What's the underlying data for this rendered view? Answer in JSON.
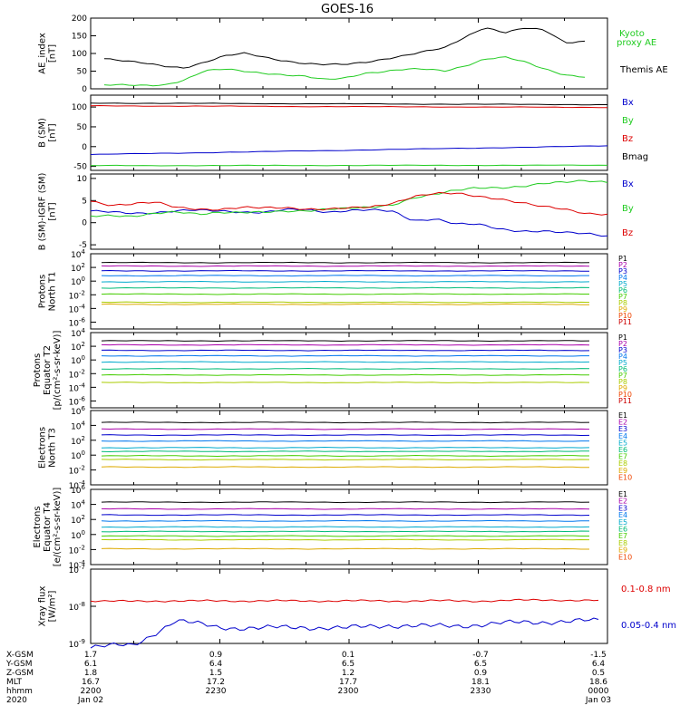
{
  "title": "GOES-16",
  "colors": {
    "black": "#000000",
    "blue": "#0000cc",
    "green": "#22cc22",
    "red": "#dd0000",
    "darkred": "#bb0000",
    "orange": "#ee8800",
    "yellow": "#dddd00",
    "channels": [
      "#000000",
      "#aa00aa",
      "#0000cc",
      "#0077ee",
      "#00aacc",
      "#00bb77",
      "#44cc00",
      "#aacc00",
      "#ddaa00",
      "#ee4400",
      "#cc0000"
    ]
  },
  "x_axis": {
    "time_range": [
      "2200",
      "0000"
    ],
    "tick_times": [
      "2200",
      "2230",
      "2300",
      "2330",
      "0000"
    ],
    "rows": [
      {
        "label": "X-GSM",
        "values": [
          "1.7",
          "0.9",
          "0.1",
          "-0.7",
          "-1.5"
        ]
      },
      {
        "label": "Y-GSM",
        "values": [
          "6.1",
          "6.4",
          "6.5",
          "6.5",
          "6.4"
        ]
      },
      {
        "label": "Z-GSM",
        "values": [
          "1.8",
          "1.5",
          "1.2",
          "0.9",
          "0.5"
        ]
      },
      {
        "label": "MLT",
        "values": [
          "16.7",
          "17.2",
          "17.7",
          "18.1",
          "18.6"
        ]
      },
      {
        "label": "hhmm",
        "values": [
          "2200",
          "2230",
          "2300",
          "2330",
          "0000"
        ]
      },
      {
        "label": "2020",
        "values": [
          "Jan 02",
          "",
          "",
          "",
          "Jan 03"
        ]
      }
    ]
  },
  "chart_data": [
    {
      "type": "line",
      "ylabel": "AE_index [nT]",
      "ylim": [
        0,
        200
      ],
      "yticks": [
        "0",
        "50",
        "100",
        "150",
        "200"
      ],
      "x": [
        "2200",
        "2205",
        "2210",
        "2215",
        "2220",
        "2225",
        "2230",
        "2235",
        "2240",
        "2245",
        "2250",
        "2255",
        "2300",
        "2305",
        "2310",
        "2315",
        "2320",
        "2325",
        "2330",
        "2335",
        "2340",
        "2345",
        "2350",
        "2355",
        "0000"
      ],
      "series": [
        {
          "name": "Themis AE",
          "color": "#000000",
          "values": [
            85,
            78,
            72,
            65,
            60,
            75,
            92,
            100,
            90,
            80,
            72,
            68,
            68,
            75,
            85,
            95,
            105,
            115,
            145,
            175,
            160,
            172,
            165,
            130,
            135
          ]
        },
        {
          "name": "Kyoto proxy AE",
          "color": "#22cc22",
          "values": [
            10,
            10,
            10,
            12,
            25,
            50,
            55,
            50,
            45,
            40,
            35,
            25,
            30,
            45,
            50,
            55,
            55,
            50,
            65,
            85,
            90,
            75,
            55,
            40,
            35
          ]
        }
      ]
    },
    {
      "type": "line",
      "ylabel": "B (SM) [nT]",
      "ylim": [
        -60,
        130
      ],
      "yticks": [
        "-50",
        "0",
        "50",
        "100"
      ],
      "x": [
        "2200",
        "0000"
      ],
      "series": [
        {
          "name": "Bx",
          "color": "#0000cc",
          "values": [
            -20,
            2
          ]
        },
        {
          "name": "By",
          "color": "#22cc22",
          "values": [
            -48,
            -47
          ]
        },
        {
          "name": "Bz",
          "color": "#dd0000",
          "values": [
            103,
            99
          ]
        },
        {
          "name": "Bmag",
          "color": "#000000",
          "values": [
            110,
            106
          ]
        }
      ]
    },
    {
      "type": "line",
      "ylabel": "B (SM)-IGRF (SM) [nT]",
      "ylim": [
        -6,
        11
      ],
      "yticks": [
        "-5",
        "0",
        "5",
        "10"
      ],
      "x": [
        "2200",
        "2205",
        "2210",
        "2215",
        "2220",
        "2225",
        "2230",
        "2235",
        "2240",
        "2245",
        "2250",
        "2255",
        "2300",
        "2305",
        "2310",
        "2315",
        "2320",
        "2325",
        "2330",
        "2335",
        "2340",
        "2345",
        "2350",
        "2355",
        "0000"
      ],
      "series": [
        {
          "name": "Bx",
          "color": "#0000cc",
          "values": [
            2.5,
            2.5,
            2.3,
            2.2,
            2.5,
            2.8,
            2.8,
            2.5,
            2.2,
            2.8,
            3.0,
            2.5,
            2.8,
            2.8,
            2.5,
            0.5,
            1.0,
            -0.3,
            -0.5,
            -1.5,
            -1.8,
            -1.8,
            -2.3,
            -2.6,
            -3.0
          ]
        },
        {
          "name": "By",
          "color": "#22cc22",
          "values": [
            1.5,
            1.8,
            1.5,
            2.0,
            2.3,
            2.0,
            2.5,
            2.3,
            2.2,
            2.5,
            2.8,
            3.2,
            3.2,
            3.3,
            4.0,
            5.8,
            6.5,
            7.2,
            7.8,
            8.0,
            8.3,
            8.8,
            9.0,
            9.5,
            9.3
          ]
        },
        {
          "name": "Bz",
          "color": "#dd0000",
          "values": [
            5.0,
            4.0,
            4.2,
            4.5,
            3.5,
            3.2,
            3.0,
            3.3,
            3.3,
            3.5,
            3.2,
            3.0,
            3.2,
            3.5,
            4.5,
            6.0,
            6.5,
            6.5,
            6.0,
            5.5,
            4.5,
            3.5,
            3.0,
            2.2,
            2.0
          ]
        }
      ]
    },
    {
      "type": "line",
      "ylabel": "Protons North T1",
      "yscale": "log",
      "ylim_exp": [
        -7,
        4
      ],
      "ytick_exps": [
        4,
        2,
        0,
        -2,
        -4,
        -6
      ],
      "series": [
        {
          "name": "P1",
          "log_values": [
            2.7
          ]
        },
        {
          "name": "P2",
          "log_values": [
            2.2
          ]
        },
        {
          "name": "P3",
          "log_values": [
            1.5
          ]
        },
        {
          "name": "P4",
          "log_values": [
            0.8
          ]
        },
        {
          "name": "P5",
          "log_values": [
            -0.1
          ]
        },
        {
          "name": "P6",
          "log_values": [
            -1.0
          ]
        },
        {
          "name": "P7",
          "log_values": [
            -1.9
          ]
        },
        {
          "name": "P8",
          "log_values": [
            -3.1
          ]
        },
        {
          "name": "P9",
          "log_values": [
            -3.4
          ]
        },
        {
          "name": "P10",
          "log_values": []
        },
        {
          "name": "P11",
          "log_values": []
        }
      ]
    },
    {
      "type": "line",
      "ylabel": "Protons Equator T2 [p/(cm²-s-sr-keV)]",
      "yscale": "log",
      "ylim_exp": [
        -7,
        4
      ],
      "ytick_exps": [
        4,
        2,
        0,
        -2,
        -4,
        -6
      ],
      "series": [
        {
          "name": "P1",
          "log_values": [
            2.8
          ]
        },
        {
          "name": "P2",
          "log_values": [
            2.2
          ]
        },
        {
          "name": "P3",
          "log_values": [
            1.4
          ]
        },
        {
          "name": "P4",
          "log_values": [
            0.6
          ]
        },
        {
          "name": "P5",
          "log_values": [
            -0.3
          ]
        },
        {
          "name": "P6",
          "log_values": [
            -1.3
          ]
        },
        {
          "name": "P7",
          "log_values": [
            -2.2
          ]
        },
        {
          "name": "P8",
          "log_values": [
            -3.3
          ]
        },
        {
          "name": "P9",
          "log_values": []
        },
        {
          "name": "P10",
          "log_values": []
        },
        {
          "name": "P11",
          "log_values": []
        }
      ]
    },
    {
      "type": "line",
      "ylabel": "Electrons North T3",
      "yscale": "log",
      "ylim_exp": [
        -4,
        6
      ],
      "ytick_exps": [
        6,
        4,
        2,
        0,
        -2,
        -4
      ],
      "series": [
        {
          "name": "E1",
          "log_values": [
            4.4
          ]
        },
        {
          "name": "E2",
          "log_values": [
            3.5
          ]
        },
        {
          "name": "E3",
          "log_values": [
            2.7
          ]
        },
        {
          "name": "E4",
          "log_values": [
            1.9
          ]
        },
        {
          "name": "E5",
          "log_values": [
            1.0
          ]
        },
        {
          "name": "E6",
          "log_values": [
            0.5
          ]
        },
        {
          "name": "E7",
          "log_values": [
            -0.1
          ]
        },
        {
          "name": "E8",
          "log_values": [
            -0.6
          ]
        },
        {
          "name": "E9",
          "log_values": [
            -1.6
          ]
        },
        {
          "name": "E10",
          "log_values": []
        }
      ]
    },
    {
      "type": "line",
      "ylabel": "Electrons Equator T4 [e/(cm²-s-sr-keV)]",
      "yscale": "log",
      "ylim_exp": [
        -4,
        6
      ],
      "ytick_exps": [
        6,
        4,
        2,
        0,
        -2,
        -4
      ],
      "series": [
        {
          "name": "E1",
          "log_values": [
            4.3
          ]
        },
        {
          "name": "E2",
          "log_values": [
            3.4
          ]
        },
        {
          "name": "E3",
          "log_values": [
            2.6
          ]
        },
        {
          "name": "E4",
          "log_values": [
            1.8
          ]
        },
        {
          "name": "E5",
          "log_values": [
            1.0
          ]
        },
        {
          "name": "E6",
          "log_values": [
            0.4
          ]
        },
        {
          "name": "E7",
          "log_values": [
            -0.2
          ]
        },
        {
          "name": "E8",
          "log_values": [
            -0.7
          ]
        },
        {
          "name": "E9",
          "log_values": [
            -1.9
          ]
        },
        {
          "name": "E10",
          "log_values": []
        }
      ]
    },
    {
      "type": "line",
      "ylabel": "Xray flux [W/m²]",
      "yscale": "log",
      "ylim_exp": [
        -9,
        -7
      ],
      "ytick_exps": [
        -7,
        -8,
        -9
      ],
      "x": [
        "2200",
        "2210",
        "2220",
        "2230",
        "2240",
        "2250",
        "2300",
        "2310",
        "2320",
        "2330",
        "2340",
        "2350",
        "0000"
      ],
      "series": [
        {
          "name": "0.1-0.8 nm",
          "color": "#dd0000",
          "log_values": [
            -7.85,
            -7.87,
            -7.85,
            -7.86,
            -7.85,
            -7.86,
            -7.85,
            -7.86,
            -7.85,
            -7.86,
            -7.84,
            -7.83,
            -7.85
          ]
        },
        {
          "name": "0.05-0.4 nm",
          "color": "#0000cc",
          "log_values": [
            -9.1,
            -9.05,
            -8.4,
            -8.55,
            -8.6,
            -8.55,
            -8.6,
            -8.5,
            -8.55,
            -8.5,
            -8.45,
            -8.4,
            -8.4
          ]
        }
      ]
    }
  ],
  "labels": {
    "panel1_right": [
      "Kyoto proxy AE",
      "Themis AE"
    ],
    "panel2_right": [
      "Bx",
      "By",
      "Bz",
      "Bmag"
    ],
    "panel3_right": [
      "Bx",
      "By",
      "Bz"
    ],
    "proton_channels": [
      "P1",
      "P2",
      "P3",
      "P4",
      "P5",
      "P6",
      "P7",
      "P8",
      "P9",
      "P10",
      "P11"
    ],
    "electron_channels": [
      "E1",
      "E2",
      "E3",
      "E4",
      "E5",
      "E6",
      "E7",
      "E8",
      "E9",
      "E10"
    ],
    "xray_right": [
      "0.1-0.8 nm",
      "0.05-0.4 nm"
    ]
  }
}
